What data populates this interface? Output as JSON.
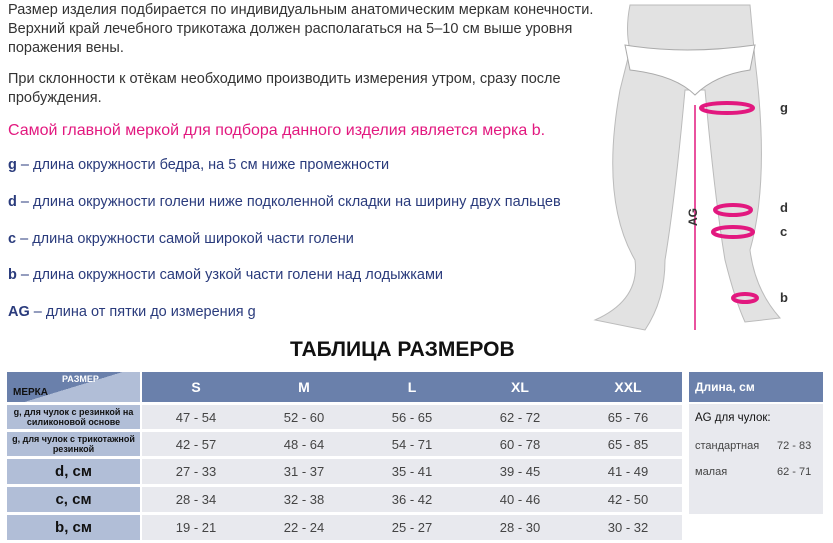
{
  "intro": {
    "p1": "Размер изделия подбирается по индивидуальным анатомическим меркам конечности. Верхний край лечебного трикотажа должен располагаться на 5–10 см выше уровня поражения вены.",
    "p2": "При склонности к отёкам необходимо производить измерения утром, сразу после пробуждения.",
    "highlight": "Самой главной меркой для подбора данного изделия является мерка b."
  },
  "definitions": [
    {
      "key": "g",
      "text": " – длина окружности бедра, на 5 см ниже промежности"
    },
    {
      "key": "d",
      "text": " – длина окружности голени ниже подколенной складки на ширину двух пальцев"
    },
    {
      "key": "c",
      "text": " – длина окружности самой широкой части голени"
    },
    {
      "key": "b",
      "text": " – длина окружности самой узкой части голени над лодыжками"
    },
    {
      "key": "AG",
      "text": " – длина от пятки до измерения g"
    }
  ],
  "diagram": {
    "labels": {
      "g": "g",
      "d": "d",
      "c": "c",
      "b": "b",
      "ag": "AG"
    }
  },
  "table": {
    "title": "ТАБЛИЦА РАЗМЕРОВ",
    "corner_size": "РАЗМЕР",
    "corner_measure": "МЕРКА",
    "sizes": [
      "S",
      "M",
      "L",
      "XL",
      "XXL"
    ],
    "rows": [
      {
        "label": "g, для чулок с  резинкой на силиконовой основе",
        "values": [
          "47 - 54",
          "52 - 60",
          "56 - 65",
          "62 - 72",
          "65 - 76"
        ]
      },
      {
        "label": "g, для чулок с трикотажной резинкой",
        "values": [
          "42 - 57",
          "48 - 64",
          "54 - 71",
          "60 - 78",
          "65 - 85"
        ]
      },
      {
        "label": "d, см",
        "values": [
          "27 - 33",
          "31 - 37",
          "35 - 41",
          "39 - 45",
          "41 - 49"
        ]
      },
      {
        "label": "c, см",
        "values": [
          "28 - 34",
          "32 - 38",
          "36 - 42",
          "40 - 46",
          "42 - 50"
        ]
      },
      {
        "label": "b, см",
        "values": [
          "19 - 21",
          "22 - 24",
          "25 - 27",
          "28 - 30",
          "30 - 32"
        ]
      }
    ]
  },
  "length": {
    "header": "Длина, см",
    "subtitle": "AG для чулок:",
    "rows": [
      {
        "label": "стандартная",
        "value": "72 - 83"
      },
      {
        "label": "малая",
        "value": "62 - 71"
      }
    ]
  },
  "colors": {
    "header": "#6a80ab",
    "label_cell": "#b1bed7",
    "cell": "#e8e9ee",
    "accent": "#e2187f",
    "definition_text": "#2a3b7c"
  }
}
